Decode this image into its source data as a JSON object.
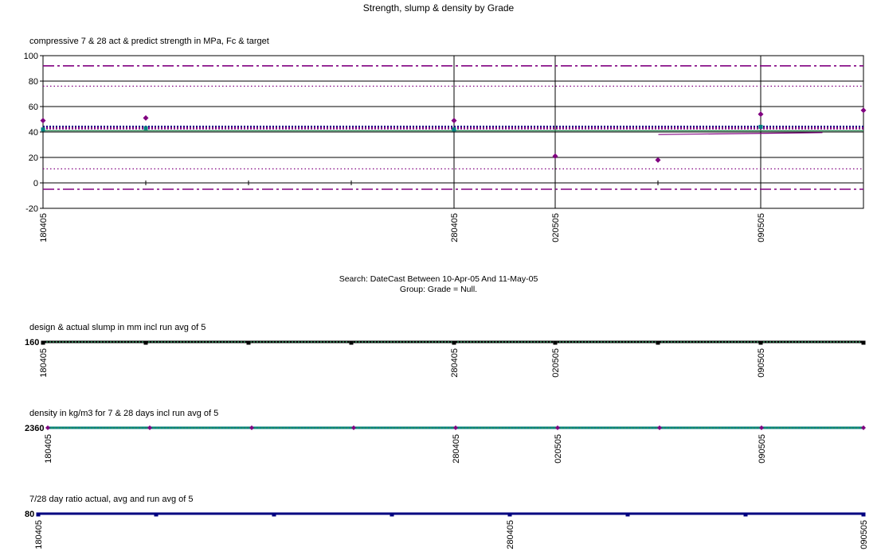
{
  "page": {
    "title": "Strength, slump & density by Grade",
    "search_line1": "Search: DateCast Between 10-Apr-05 And 11-May-05",
    "search_line2": "Group: Grade = Null."
  },
  "colors": {
    "purple": "#800080",
    "dark_purple": "#6a006a",
    "teal": "#008080",
    "navy": "#000080",
    "green": "#2e8b57",
    "black": "#000000"
  },
  "chart_data": [
    {
      "type": "scatter",
      "title": "compressive 7 & 28 act & predict strength in MPa, Fc & target",
      "ylim": [
        -20,
        100
      ],
      "yticks": [
        -20,
        0,
        20,
        40,
        60,
        80,
        100
      ],
      "grid": true,
      "x_labels": [
        "180405",
        "280405",
        "020505",
        "090505"
      ],
      "series": [
        {
          "kind": "points",
          "color": "#800080",
          "marker": "diamond",
          "points": [
            [
              0,
              49
            ],
            [
              1,
              51
            ],
            [
              4,
              49
            ],
            [
              5,
              21
            ],
            [
              6,
              18
            ],
            [
              7,
              54
            ],
            [
              8,
              57
            ]
          ]
        },
        {
          "kind": "points",
          "color": "#008080",
          "marker": "square",
          "points": [
            [
              0,
              42
            ],
            [
              1,
              43
            ],
            [
              4,
              42
            ],
            [
              7,
              44
            ]
          ]
        },
        {
          "kind": "hline",
          "value": 92,
          "color": "#800080",
          "dash": "dashdot"
        },
        {
          "kind": "hline",
          "value": 76,
          "color": "#800080",
          "dash": "dotted"
        },
        {
          "kind": "hline",
          "value": 44,
          "color": "#000080",
          "dash": "dotted-thick"
        },
        {
          "kind": "hline",
          "value": 43,
          "color": "#800080",
          "dash": "dotted-thick"
        },
        {
          "kind": "hline",
          "value": 41,
          "color": "#2e8b57",
          "dash": "solid"
        },
        {
          "kind": "hline",
          "value": 11,
          "color": "#800080",
          "dash": "dotted"
        },
        {
          "kind": "hline",
          "value": -5,
          "color": "#800080",
          "dash": "dashdot"
        },
        {
          "kind": "segment",
          "from": [
            6,
            38
          ],
          "to": [
            7.6,
            39.5
          ],
          "color": "#800080"
        }
      ]
    },
    {
      "type": "line",
      "title": "design & actual slump in mm incl run avg of 5",
      "yticks_text": "160",
      "x_labels": [
        "180405",
        "280405",
        "020505",
        "090505"
      ],
      "series": [
        {
          "name": "design",
          "color": "#000000"
        },
        {
          "name": "run avg",
          "color": "#2e8b57"
        }
      ]
    },
    {
      "type": "line",
      "title": "density in kg/m3 for 7 & 28 days incl run avg of 5",
      "yticks_text": "2360",
      "x_labels": [
        "180405",
        "280405",
        "020505",
        "090505"
      ],
      "series": [
        {
          "name": "density",
          "color": "#800080"
        },
        {
          "name": "run avg",
          "color": "#2e8b57"
        }
      ]
    },
    {
      "type": "line",
      "title": "7/28 day ratio actual, avg and run avg of 5",
      "yticks_text": "80",
      "x_labels": [
        "180405",
        "280405",
        "090505"
      ],
      "series": [
        {
          "name": "ratio",
          "color": "#000080"
        }
      ]
    }
  ]
}
